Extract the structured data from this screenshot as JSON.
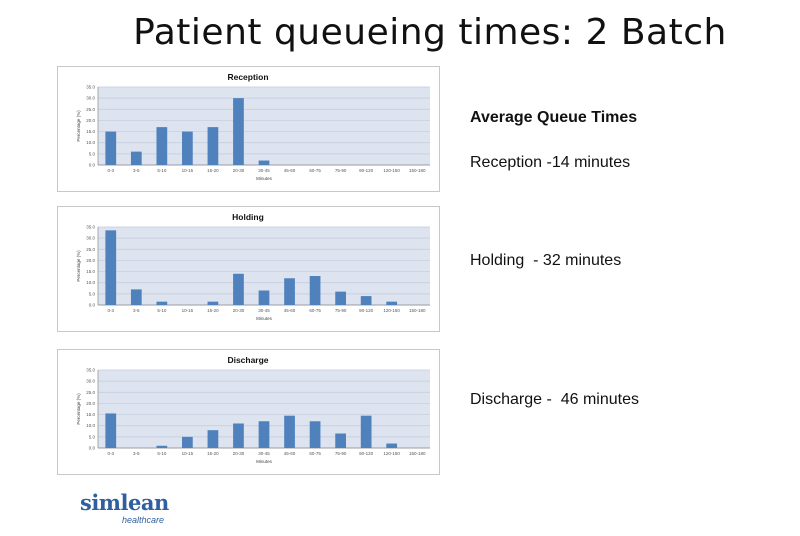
{
  "slide": {
    "title": "Patient queueing times: 2 Batch"
  },
  "stats": {
    "heading": "Average Queue Times",
    "lines": [
      "Reception -14 minutes",
      "Holding  - 32 minutes",
      "Discharge -  46 minutes"
    ]
  },
  "logo": {
    "main": "simlean",
    "sub": "healthcare",
    "color": "#2f5f9e"
  },
  "colors": {
    "bar": "#4f81bd",
    "plot_background": "#dde3ef",
    "grid": "#c3cbdc"
  },
  "chart_data": [
    {
      "type": "bar",
      "title": "Reception",
      "xlabel": "Minutes",
      "ylabel": "Percentage (%)",
      "ylim": [
        0,
        35
      ],
      "yticks": [
        "0.0",
        "5.0",
        "10.0",
        "15.0",
        "20.0",
        "25.0",
        "30.0",
        "35.0"
      ],
      "grid": true,
      "categories": [
        "0-3",
        "3-5",
        "5-10",
        "10-15",
        "15-20",
        "20-30",
        "30-45",
        "45-60",
        "60-75",
        "75-90",
        "90-120",
        "120-150",
        "150-180"
      ],
      "values": [
        15,
        6,
        17,
        15,
        17,
        30,
        2,
        0,
        0,
        0,
        0,
        0,
        0
      ]
    },
    {
      "type": "bar",
      "title": "Holding",
      "xlabel": "Minutes",
      "ylabel": "Percentage (%)",
      "ylim": [
        0,
        35
      ],
      "yticks": [
        "0.0",
        "5.0",
        "10.0",
        "15.0",
        "20.0",
        "25.0",
        "30.0",
        "35.0"
      ],
      "grid": true,
      "categories": [
        "0-3",
        "3-5",
        "5-10",
        "10-15",
        "15-20",
        "20-30",
        "30-45",
        "45-60",
        "60-75",
        "75-90",
        "90-120",
        "120-150",
        "150-180"
      ],
      "values": [
        33.5,
        7,
        1.5,
        0,
        1.5,
        14,
        6.5,
        12,
        13,
        6,
        4,
        1.5,
        0
      ]
    },
    {
      "type": "bar",
      "title": "Discharge",
      "xlabel": "Minutes",
      "ylabel": "Percentage (%)",
      "ylim": [
        0,
        35
      ],
      "yticks": [
        "0.0",
        "5.0",
        "10.0",
        "15.0",
        "20.0",
        "25.0",
        "30.0",
        "35.0"
      ],
      "grid": true,
      "categories": [
        "0-3",
        "3-5",
        "5-10",
        "10-15",
        "15-20",
        "20-30",
        "30-45",
        "45-60",
        "60-75",
        "75-90",
        "90-120",
        "120-150",
        "150-180"
      ],
      "values": [
        15.5,
        0,
        1,
        5,
        8,
        11,
        12,
        14.5,
        12,
        6.5,
        14.5,
        2,
        0
      ]
    }
  ]
}
